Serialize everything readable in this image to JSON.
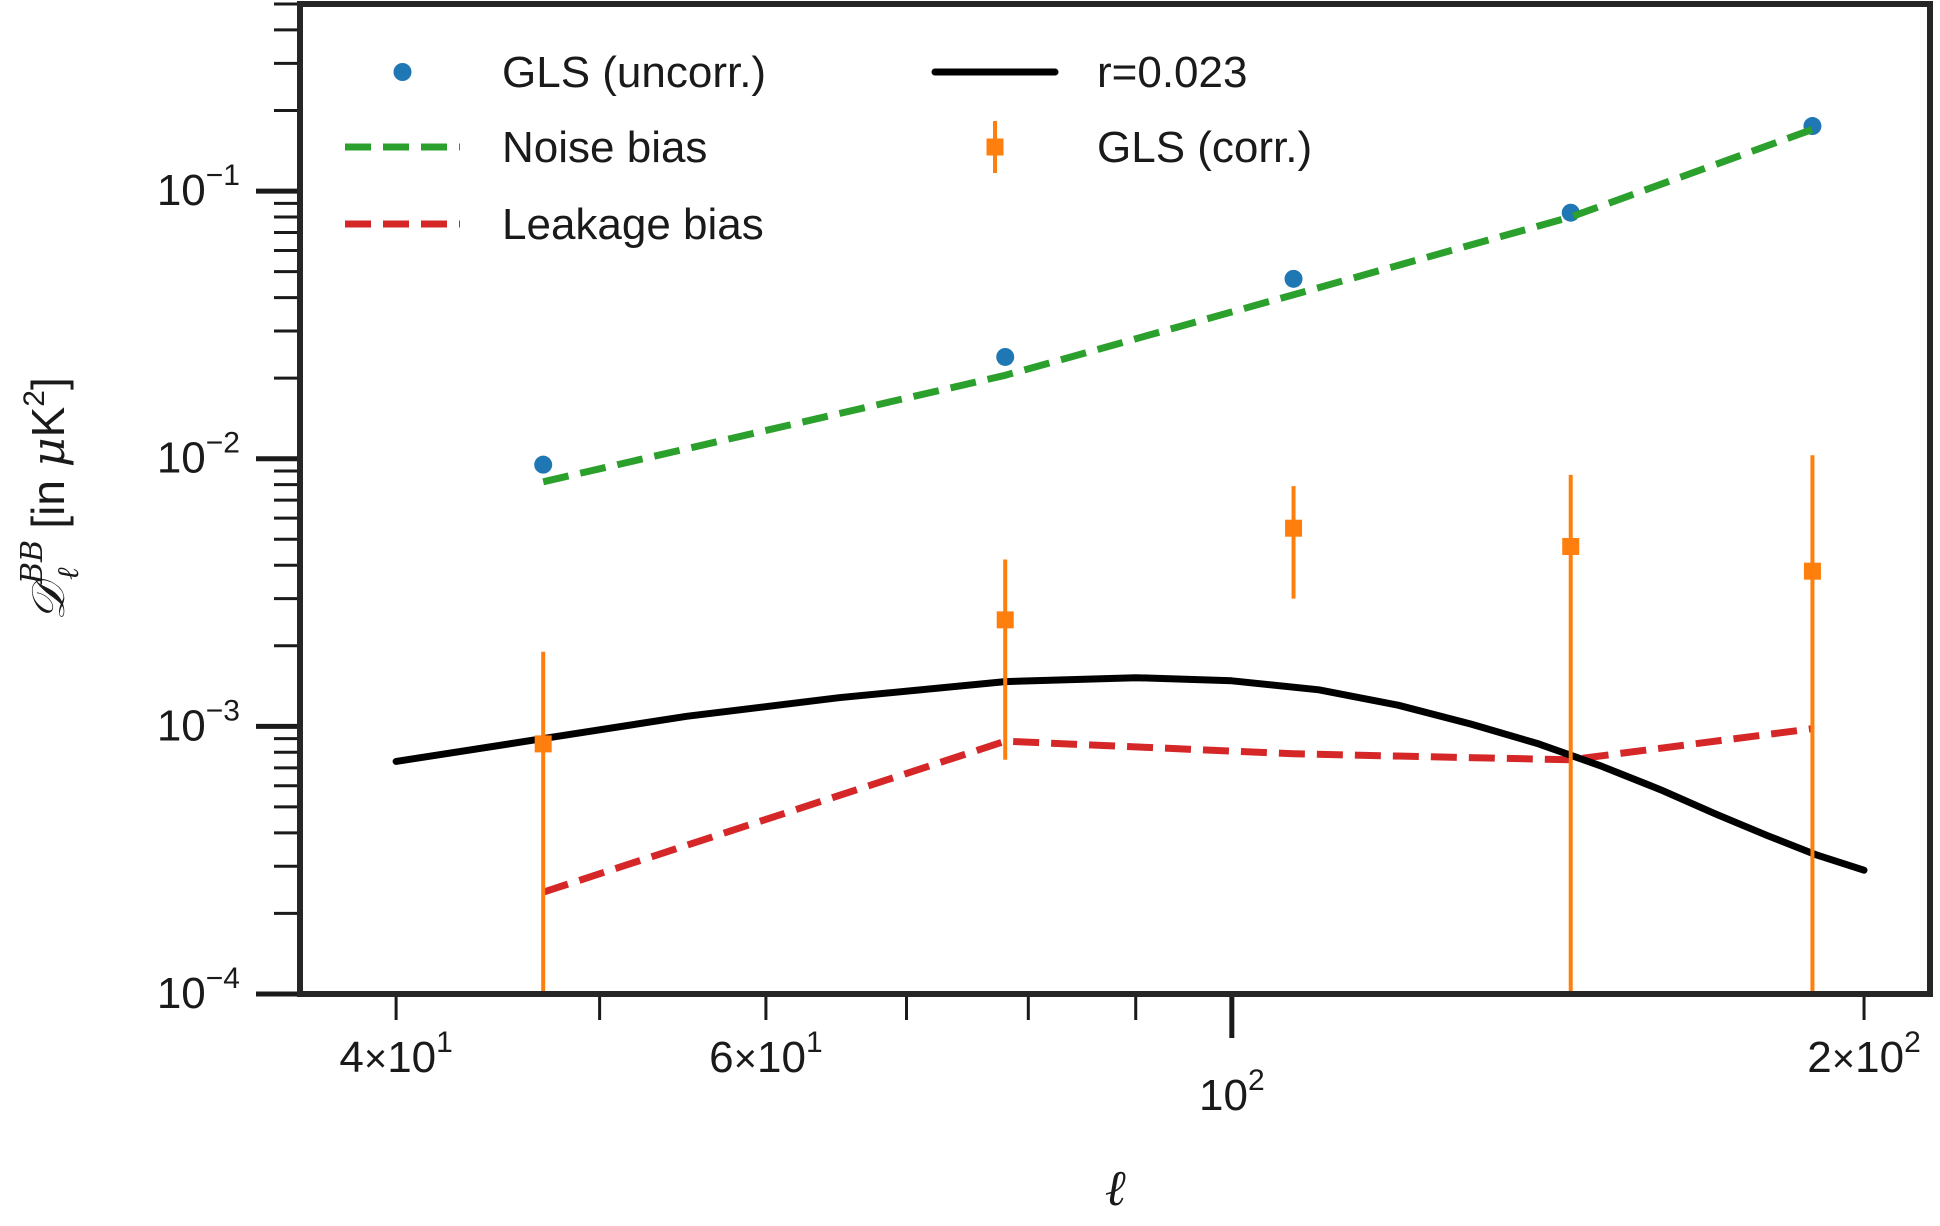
{
  "chart_data": {
    "type": "line",
    "xscale": "log",
    "yscale": "log",
    "xlim": [
      36,
      215
    ],
    "ylim": [
      0.0001,
      0.5
    ],
    "grid": false,
    "legend_position": "top-left",
    "xlabel": "ℓ",
    "ylabel": {
      "main": "𝒟",
      "superscript": "BB",
      "subscript": "ℓ",
      "suffix_prefix": " [in ",
      "mu": "μ",
      "unit": "K",
      "unit_superscript": "2",
      "suffix_end": "]"
    },
    "x_ticks": [
      {
        "value": 40,
        "mant": "4",
        "times": "×",
        "base": "10",
        "exp": "1"
      },
      {
        "value": 60,
        "mant": "6",
        "times": "×",
        "base": "10",
        "exp": "1"
      },
      {
        "value": 100,
        "mant": "",
        "times": "",
        "base": "10",
        "exp": "2"
      },
      {
        "value": 200,
        "mant": "2",
        "times": "×",
        "base": "10",
        "exp": "2"
      }
    ],
    "y_ticks": [
      {
        "value": 0.1,
        "base": "10",
        "exp": "−1"
      },
      {
        "value": 0.01,
        "base": "10",
        "exp": "−2"
      },
      {
        "value": 0.001,
        "base": "10",
        "exp": "−3"
      },
      {
        "value": 0.0001,
        "base": "10",
        "exp": "−4"
      }
    ],
    "series": [
      {
        "name": "GLS (uncorr.)",
        "kind": "scatter",
        "color": "#1f77b4",
        "x": [
          47,
          78,
          107,
          145,
          189
        ],
        "y": [
          0.0095,
          0.024,
          0.047,
          0.083,
          0.175
        ]
      },
      {
        "name": "Noise bias",
        "kind": "line",
        "style": "dashed",
        "color": "#2ca02c",
        "x": [
          47,
          78,
          107,
          145,
          189
        ],
        "y": [
          0.0082,
          0.0205,
          0.041,
          0.08,
          0.17
        ]
      },
      {
        "name": "Leakage bias",
        "kind": "line",
        "style": "dashed",
        "color": "#d62728",
        "x": [
          47,
          78,
          107,
          145,
          189
        ],
        "y": [
          0.00024,
          0.00088,
          0.00079,
          0.00075,
          0.00098
        ]
      },
      {
        "name": "r=0.023",
        "kind": "line",
        "style": "solid",
        "color": "#000000",
        "x": [
          40,
          47,
          55,
          65,
          78,
          90,
          100,
          110,
          120,
          130,
          140,
          150,
          160,
          170,
          180,
          190,
          200
        ],
        "y": [
          0.00074,
          0.0009,
          0.00109,
          0.00128,
          0.00147,
          0.00152,
          0.00148,
          0.00137,
          0.0012,
          0.00102,
          0.00086,
          0.00071,
          0.00058,
          0.00047,
          0.00039,
          0.00033,
          0.00029
        ]
      },
      {
        "name": "GLS (corr.)",
        "kind": "errorbar",
        "color": "#ff7f0e",
        "x": [
          47,
          78,
          107,
          145,
          189
        ],
        "y": [
          0.00086,
          0.0025,
          0.0055,
          0.0047,
          0.0038
        ],
        "yerr_low": [
          0.0001,
          0.00075,
          0.003,
          0.0001,
          0.0001
        ],
        "yerr_high": [
          0.0019,
          0.0042,
          0.0079,
          0.0087,
          0.0103
        ]
      }
    ],
    "legend": [
      {
        "label": "GLS (uncorr.)",
        "series": 0
      },
      {
        "label": "Noise bias",
        "series": 1
      },
      {
        "label": "Leakage bias",
        "series": 2
      },
      {
        "label": "r=0.023",
        "series": 3
      },
      {
        "label": "GLS (corr.)",
        "series": 4
      }
    ]
  }
}
